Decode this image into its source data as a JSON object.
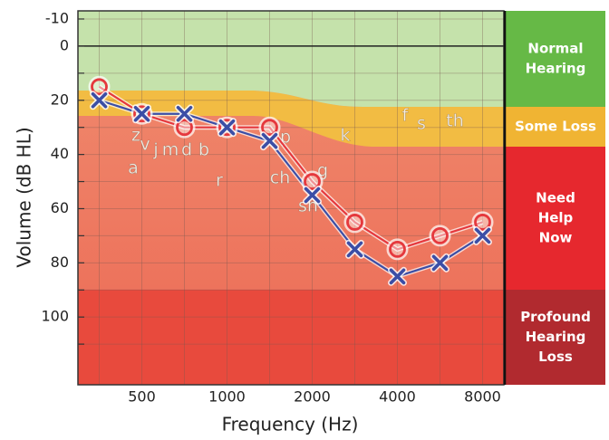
{
  "chart_data": {
    "type": "line",
    "xlabel": "Frequency (Hz)",
    "ylabel": "Volume  (dB HL)",
    "categories": [
      null,
      "500",
      null,
      "1000",
      null,
      "2000",
      null,
      "4000",
      null,
      "8000"
    ],
    "series": [
      {
        "color": "#e5383d",
        "marker": "circle",
        "values": [
          15,
          25,
          30,
          30,
          30,
          50,
          65,
          75,
          70,
          65
        ]
      },
      {
        "color": "#3b4ea6",
        "marker": "x",
        "values": [
          20,
          25,
          25,
          30,
          35,
          55,
          75,
          85,
          80,
          70
        ]
      }
    ],
    "ylim": [
      -13,
      125
    ],
    "y_inverted": true,
    "yticks": [
      -10,
      0,
      20,
      40,
      60,
      80,
      100
    ],
    "y_minor_ticks": [
      10,
      30,
      50,
      70,
      90,
      110
    ],
    "grid": true,
    "zones": [
      {
        "lines": [
          "Normal",
          "Hearing"
        ],
        "color": "#66b946"
      },
      {
        "lines": [
          "Some Loss"
        ],
        "color": "#f0b433"
      },
      {
        "lines": [
          "Need",
          "Help",
          "Now"
        ],
        "color": "#e6282e"
      },
      {
        "lines": [
          "Profound",
          "Hearing",
          "Loss"
        ],
        "color": "#b12a2f"
      }
    ],
    "speech_sounds": [
      "z",
      "v",
      "j",
      "m",
      "d",
      "b",
      "a",
      "r",
      "p",
      "ch",
      "sh",
      "g",
      "k",
      "f",
      "s",
      "th"
    ]
  }
}
